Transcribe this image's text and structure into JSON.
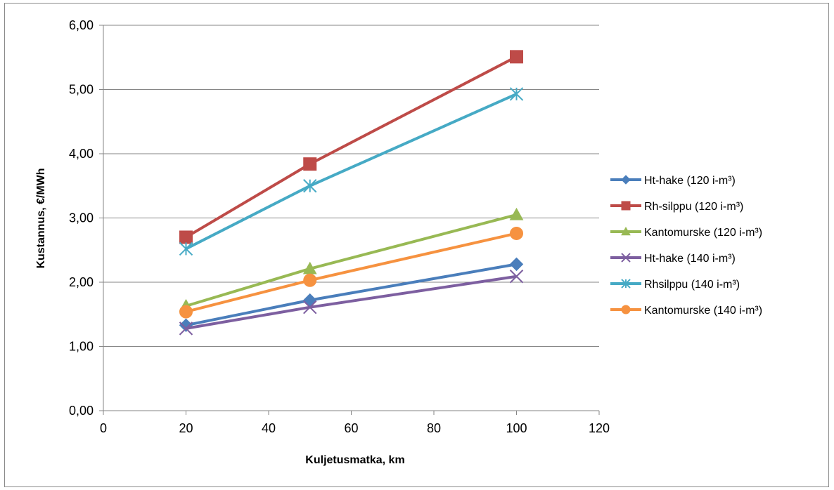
{
  "chart_data": {
    "type": "line",
    "title": "",
    "xlabel": "Kuljetusmatka, km",
    "ylabel": "Kustannus, €/MWh",
    "xlim": [
      0,
      120
    ],
    "ylim": [
      0,
      6
    ],
    "x_ticks": [
      0,
      20,
      40,
      60,
      80,
      100,
      120
    ],
    "x_tick_labels": [
      "0",
      "20",
      "40",
      "60",
      "80",
      "100",
      "120"
    ],
    "y_ticks": [
      0,
      1,
      2,
      3,
      4,
      5,
      6
    ],
    "y_tick_labels": [
      "0,00",
      "1,00",
      "2,00",
      "3,00",
      "4,00",
      "5,00",
      "6,00"
    ],
    "grid": "horizontal",
    "legend_position": "right",
    "x": [
      20,
      50,
      100
    ],
    "series": [
      {
        "name": "Ht-hake (120 i-m³)",
        "values": [
          1.33,
          1.72,
          2.28
        ],
        "color": "#4a7ebb",
        "marker": "diamond"
      },
      {
        "name": "Rh-silppu (120 i-m³)",
        "values": [
          2.7,
          3.84,
          5.51
        ],
        "color": "#be4b48",
        "marker": "square"
      },
      {
        "name": "Kantomurske (120 i-m³)",
        "values": [
          1.63,
          2.21,
          3.05
        ],
        "color": "#98b954",
        "marker": "triangle"
      },
      {
        "name": "Ht-hake (140 i-m³)",
        "values": [
          1.28,
          1.61,
          2.09
        ],
        "color": "#7d5fa0",
        "marker": "x"
      },
      {
        "name": "Rhsilppu (140 i-m³)",
        "values": [
          2.52,
          3.5,
          4.93
        ],
        "color": "#46aac5",
        "marker": "star"
      },
      {
        "name": "Kantomurske (140 i-m³)",
        "values": [
          1.54,
          2.03,
          2.76
        ],
        "color": "#f69240",
        "marker": "circle"
      }
    ]
  }
}
